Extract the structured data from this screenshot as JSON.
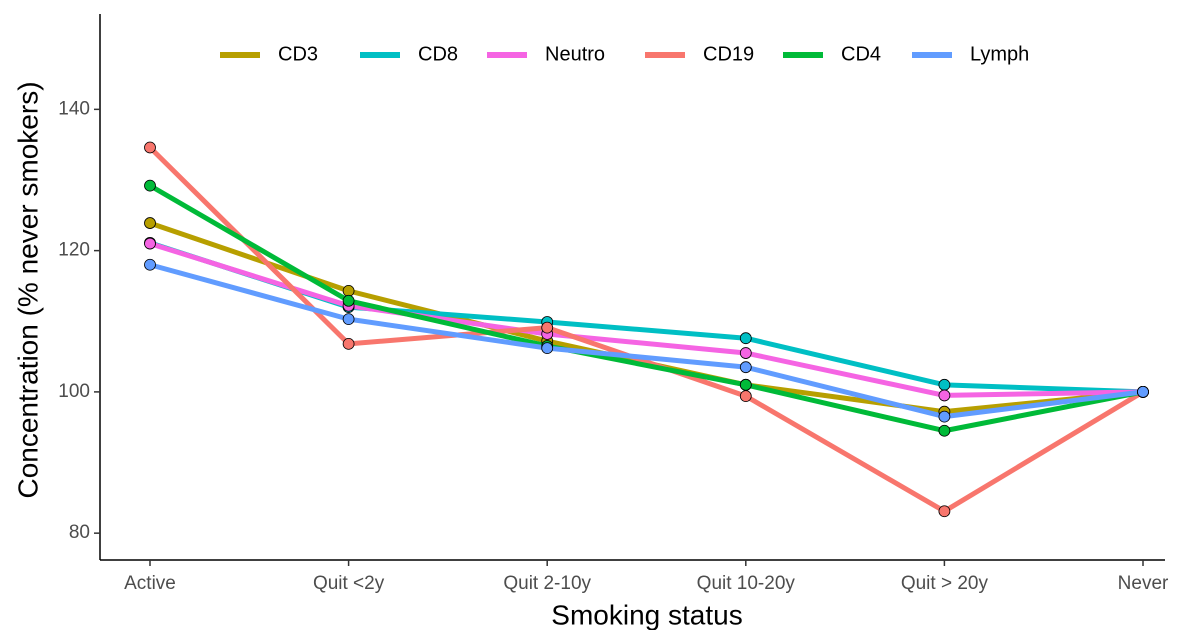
{
  "chart_data": {
    "type": "line",
    "xlabel": "Smoking status",
    "ylabel": "Concentration (% never smokers)",
    "categories": [
      "Active",
      "Quit <2y",
      "Quit 2-10y",
      "Quit 10-20y",
      "Quit > 20y",
      "Never"
    ],
    "series": [
      {
        "name": "CD3",
        "color": "#b79f00",
        "values": [
          123.9,
          114.3,
          107.2,
          101,
          97.2,
          100
        ]
      },
      {
        "name": "CD8",
        "color": "#00bfc4",
        "values": [
          121.1,
          112,
          109.9,
          107.6,
          101,
          100
        ]
      },
      {
        "name": "Neutro",
        "color": "#f564e3",
        "values": [
          121,
          112.2,
          108.2,
          105.5,
          99.5,
          100
        ]
      },
      {
        "name": "CD19",
        "color": "#f8766d",
        "values": [
          134.6,
          106.8,
          109.1,
          99.4,
          83.1,
          100
        ]
      },
      {
        "name": "CD4",
        "color": "#00ba38",
        "values": [
          129.2,
          112.9,
          106.5,
          101,
          94.5,
          100
        ]
      },
      {
        "name": "Lymph",
        "color": "#619cff",
        "values": [
          118,
          110.3,
          106.2,
          103.5,
          96.5,
          100
        ]
      }
    ],
    "ylim": [
      76.2,
      153.5
    ],
    "yticks": [
      80,
      100,
      120,
      140
    ],
    "legend": "top"
  }
}
